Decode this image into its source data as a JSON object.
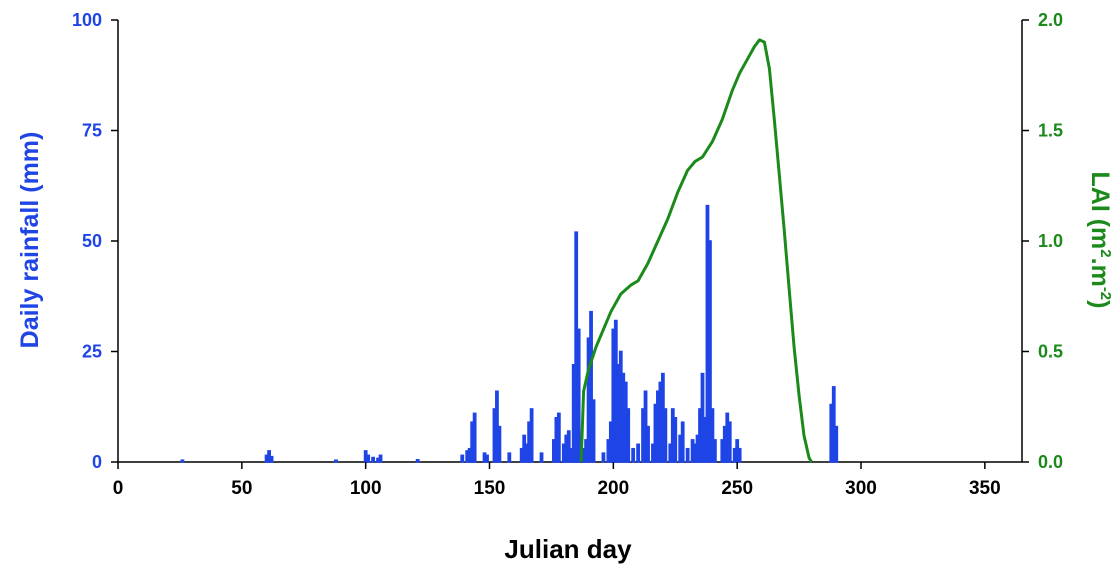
{
  "chart_data": {
    "type": "bar",
    "xlabel": "Julian day",
    "ylabel": "Daily rainfall (mm)",
    "y2label_main": "LAI (m",
    "y2label_sup1": "2",
    "y2label_mid": ".m",
    "y2label_sup2": "-2",
    "y2label_end": ")",
    "xlim": [
      0,
      365
    ],
    "ylim": [
      0,
      100
    ],
    "y2lim": [
      0,
      2.0
    ],
    "x_ticks": [
      "0",
      "50",
      "100",
      "150",
      "200",
      "250",
      "300",
      "350"
    ],
    "y_ticks": [
      "0",
      "25",
      "50",
      "75",
      "100"
    ],
    "y2_ticks": [
      "0.0",
      "0.5",
      "1.0",
      "1.5",
      "2.0"
    ],
    "colors": {
      "rainfall": "#1f45e6",
      "lai": "#1b8a1b",
      "axis": "#000000"
    },
    "series": [
      {
        "name": "Daily rainfall (mm)",
        "axis": "left",
        "points": [
          [
            26,
            0.4
          ],
          [
            60,
            1.5
          ],
          [
            61,
            2.5
          ],
          [
            62,
            1.2
          ],
          [
            88,
            0.4
          ],
          [
            100,
            2.5
          ],
          [
            101,
            1.5
          ],
          [
            103,
            1.0
          ],
          [
            105,
            0.8
          ],
          [
            106,
            1.5
          ],
          [
            121,
            0.5
          ],
          [
            139,
            1.5
          ],
          [
            141,
            2.5
          ],
          [
            142,
            3.0
          ],
          [
            143,
            9.0
          ],
          [
            144,
            11.0
          ],
          [
            148,
            2.0
          ],
          [
            149,
            1.5
          ],
          [
            152,
            12.0
          ],
          [
            153,
            16.0
          ],
          [
            154,
            8.0
          ],
          [
            158,
            2.0
          ],
          [
            163,
            3.0
          ],
          [
            164,
            6.0
          ],
          [
            165,
            4.0
          ],
          [
            166,
            9.0
          ],
          [
            167,
            12.0
          ],
          [
            171,
            2.0
          ],
          [
            176,
            5.0
          ],
          [
            177,
            10.0
          ],
          [
            178,
            11.0
          ],
          [
            180,
            4.0
          ],
          [
            181,
            6.0
          ],
          [
            182,
            7.0
          ],
          [
            183,
            3.0
          ],
          [
            184,
            22.0
          ],
          [
            185,
            52.0
          ],
          [
            186,
            30.0
          ],
          [
            188,
            3.0
          ],
          [
            189,
            5.0
          ],
          [
            190,
            28.0
          ],
          [
            191,
            34.0
          ],
          [
            192,
            14.0
          ],
          [
            196,
            2.0
          ],
          [
            198,
            5.0
          ],
          [
            199,
            9.0
          ],
          [
            200,
            30.0
          ],
          [
            201,
            32.0
          ],
          [
            202,
            22.0
          ],
          [
            203,
            25.0
          ],
          [
            204,
            20.0
          ],
          [
            205,
            18.0
          ],
          [
            206,
            12.0
          ],
          [
            208,
            3.0
          ],
          [
            210,
            4.0
          ],
          [
            212,
            12.0
          ],
          [
            213,
            16.0
          ],
          [
            214,
            8.0
          ],
          [
            216,
            4.0
          ],
          [
            217,
            13.0
          ],
          [
            218,
            16.0
          ],
          [
            219,
            18.0
          ],
          [
            220,
            20.0
          ],
          [
            221,
            12.0
          ],
          [
            223,
            4.0
          ],
          [
            224,
            12.0
          ],
          [
            225,
            10.0
          ],
          [
            227,
            6.0
          ],
          [
            228,
            9.0
          ],
          [
            230,
            3.0
          ],
          [
            232,
            5.0
          ],
          [
            233,
            4.0
          ],
          [
            234,
            6.0
          ],
          [
            235,
            12.0
          ],
          [
            236,
            20.0
          ],
          [
            237,
            10.0
          ],
          [
            238,
            58.0
          ],
          [
            239,
            50.0
          ],
          [
            240,
            12.0
          ],
          [
            241,
            5.0
          ],
          [
            244,
            5.0
          ],
          [
            245,
            8.0
          ],
          [
            246,
            11.0
          ],
          [
            247,
            9.0
          ],
          [
            249,
            3.0
          ],
          [
            250,
            5.0
          ],
          [
            251,
            3.0
          ],
          [
            288,
            13.0
          ],
          [
            289,
            17.0
          ],
          [
            290,
            8.0
          ]
        ]
      },
      {
        "name": "LAI (m2.m-2)",
        "axis": "right",
        "points": [
          [
            187,
            0.0
          ],
          [
            188,
            0.32
          ],
          [
            190,
            0.42
          ],
          [
            193,
            0.52
          ],
          [
            196,
            0.6
          ],
          [
            199,
            0.68
          ],
          [
            203,
            0.76
          ],
          [
            207,
            0.8
          ],
          [
            210,
            0.82
          ],
          [
            214,
            0.9
          ],
          [
            218,
            1.0
          ],
          [
            222,
            1.1
          ],
          [
            226,
            1.22
          ],
          [
            230,
            1.32
          ],
          [
            233,
            1.36
          ],
          [
            236,
            1.38
          ],
          [
            240,
            1.45
          ],
          [
            244,
            1.55
          ],
          [
            248,
            1.68
          ],
          [
            251,
            1.76
          ],
          [
            254,
            1.82
          ],
          [
            257,
            1.88
          ],
          [
            259,
            1.91
          ],
          [
            261,
            1.9
          ],
          [
            263,
            1.78
          ],
          [
            265,
            1.55
          ],
          [
            267,
            1.3
          ],
          [
            269,
            1.05
          ],
          [
            271,
            0.78
          ],
          [
            273,
            0.52
          ],
          [
            275,
            0.3
          ],
          [
            277,
            0.12
          ],
          [
            279,
            0.02
          ],
          [
            280,
            0.0
          ]
        ]
      }
    ]
  }
}
